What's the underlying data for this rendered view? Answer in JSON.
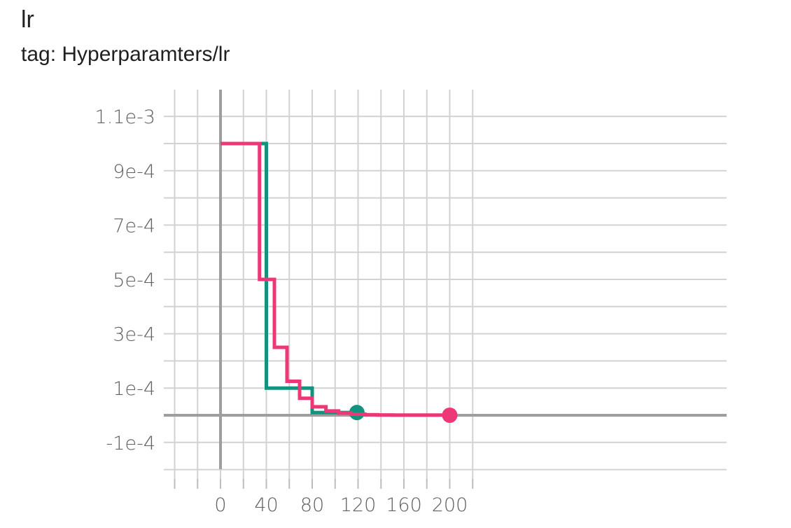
{
  "card": {
    "title": "lr",
    "tag": "tag: Hyperparamters/lr"
  },
  "chart_data": {
    "type": "line",
    "title": "lr",
    "subtitle": "tag: Hyperparamters/lr",
    "xlabel": "",
    "ylabel": "",
    "xlim": [
      -10,
      220
    ],
    "ylim": [
      -0.0002,
      0.00112
    ],
    "x_ticks": [
      0,
      40,
      80,
      120,
      160,
      200
    ],
    "x_tick_labels": [
      "0",
      "40",
      "80",
      "120",
      "160",
      "200"
    ],
    "x_minor_ticks": [
      -40,
      -20,
      20,
      60,
      100,
      140,
      180,
      220
    ],
    "y_ticks": [
      0.0011,
      0.0009,
      0.0007,
      0.0005,
      0.0003,
      0.0001,
      -0.0001
    ],
    "y_tick_labels": [
      "1.1e-3",
      "9e-4",
      "7e-4",
      "5e-4",
      "3e-4",
      "1e-4",
      "-1e-4"
    ],
    "y_minor_ticks": [
      0.001,
      0.0008,
      0.0006,
      0.0004,
      0.0002,
      0,
      -0.0002
    ],
    "grid": true,
    "legend": "none",
    "series": [
      {
        "color": "#12937f",
        "step": true,
        "x": [
          0,
          39,
          40,
          79,
          80,
          119
        ],
        "y": [
          0.001,
          0.001,
          0.0001,
          0.0001,
          1e-05,
          1e-05
        ],
        "end_marker": true
      },
      {
        "color": "#ed3878",
        "step": true,
        "x": [
          0,
          33,
          34,
          46,
          47,
          57,
          58,
          68,
          69,
          79,
          80,
          91,
          92,
          102,
          103,
          113,
          114,
          125,
          126,
          136,
          137,
          150,
          200
        ],
        "y": [
          0.001,
          0.001,
          0.0005,
          0.0005,
          0.00025,
          0.00025,
          0.000125,
          0.000125,
          6.25e-05,
          6.25e-05,
          3.125e-05,
          3.125e-05,
          1.56e-05,
          1.56e-05,
          7.8e-06,
          7.8e-06,
          3.9e-06,
          3.9e-06,
          2e-06,
          2e-06,
          1e-06,
          5e-07,
          1e-07
        ],
        "end_marker": true
      }
    ]
  }
}
